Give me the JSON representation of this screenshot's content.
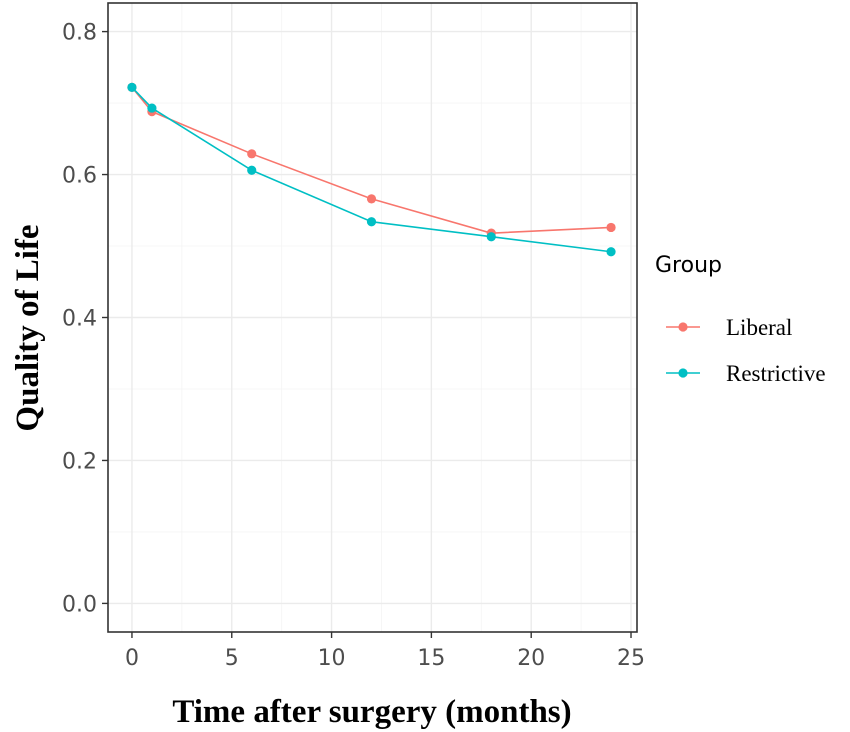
{
  "chart_data": {
    "type": "line",
    "xlabel": "Time after surgery (months)",
    "ylabel": "Quality of Life",
    "xlim": [
      -1.2,
      25.3
    ],
    "ylim": [
      -0.04,
      0.84
    ],
    "x_ticks": [
      0,
      5,
      10,
      15,
      20,
      25
    ],
    "y_ticks": [
      0.0,
      0.2,
      0.4,
      0.6,
      0.8
    ],
    "x_tick_labels": [
      "0",
      "5",
      "10",
      "15",
      "20",
      "25"
    ],
    "y_tick_labels": [
      "0.0",
      "0.2",
      "0.4",
      "0.6",
      "0.8"
    ],
    "grid": true,
    "legend": {
      "title": "Group",
      "position": "right"
    },
    "series": [
      {
        "name": "Liberal",
        "color": "#f8766d",
        "x": [
          0,
          1,
          6,
          12,
          18,
          24
        ],
        "y": [
          0.722,
          0.688,
          0.629,
          0.566,
          0.518,
          0.526
        ]
      },
      {
        "name": "Restrictive",
        "color": "#00bfc4",
        "x": [
          0,
          1,
          6,
          12,
          18,
          24
        ],
        "y": [
          0.722,
          0.693,
          0.606,
          0.534,
          0.513,
          0.492
        ]
      }
    ]
  }
}
